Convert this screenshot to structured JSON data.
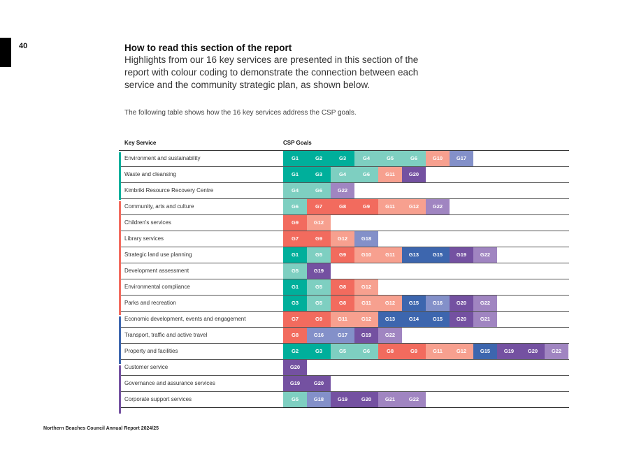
{
  "page_number": "40",
  "heading": "How to read this section of the report",
  "lead": "Highlights from our 16 key services are presented in this section of the report with colour coding to demonstrate the connection between each service and the community strategic plan, as shown below.",
  "note": "The following table shows how the 16 key services address the CSP goals.",
  "table": {
    "col_service": "Key Service",
    "col_goals": "CSP Goals",
    "rows": [
      {
        "service": "Environment and sustainability",
        "goals": [
          "G1",
          "G2",
          "G3",
          "G4",
          "G5",
          "G6",
          "G10",
          "G17"
        ]
      },
      {
        "service": "Waste and cleansing",
        "goals": [
          "G1",
          "G3",
          "G4",
          "G6",
          "G11",
          "G20"
        ]
      },
      {
        "service": "Kimbriki Resource Recovery Centre",
        "goals": [
          "G4",
          "G6",
          "G22"
        ]
      },
      {
        "service": "Community, arts and culture",
        "goals": [
          "G6",
          "G7",
          "G8",
          "G9",
          "G11",
          "G12",
          "G22"
        ]
      },
      {
        "service": "Children's services",
        "goals": [
          "G9",
          "G12"
        ]
      },
      {
        "service": "Library services",
        "goals": [
          "G7",
          "G9",
          "G12",
          "G18"
        ]
      },
      {
        "service": "Strategic land use planning",
        "goals": [
          "G1",
          "G5",
          "G9",
          "G10",
          "G11",
          "G13",
          "G15",
          "G19",
          "G22"
        ]
      },
      {
        "service": "Development assessment",
        "goals": [
          "G5",
          "G19"
        ]
      },
      {
        "service": "Environmental compliance",
        "goals": [
          "G1",
          "G5",
          "G8",
          "G12"
        ]
      },
      {
        "service": "Parks and recreation",
        "goals": [
          "G3",
          "G5",
          "G8",
          "G11",
          "G12",
          "G15",
          "G16",
          "G20",
          "G22"
        ]
      },
      {
        "service": "Economic development, events and engagement",
        "goals": [
          "G7",
          "G9",
          "G11",
          "G12",
          "G13",
          "G14",
          "G15",
          "G20",
          "G21"
        ]
      },
      {
        "service": "Transport, traffic and active travel",
        "goals": [
          "G8",
          "G16",
          "G17",
          "G19",
          "G22"
        ]
      },
      {
        "service": "Property and facilities",
        "goals": [
          "G2",
          "G3",
          "G5",
          "G6",
          "G8",
          "G9",
          "G11",
          "G12",
          "G15",
          "G19",
          "G20",
          "G22"
        ]
      },
      {
        "service": "Customer service",
        "goals": [
          "G20"
        ]
      },
      {
        "service": "Governance and assurance services",
        "goals": [
          "G19",
          "G20"
        ]
      },
      {
        "service": "Corporate support services",
        "goals": [
          "G5",
          "G18",
          "G19",
          "G20",
          "G21",
          "G22"
        ]
      }
    ],
    "groups": [
      {
        "name": "environment",
        "color": "#00AF9B",
        "rows": [
          0,
          1,
          2
        ]
      },
      {
        "name": "community",
        "color": "#F26B5E",
        "rows": [
          3,
          4,
          5,
          6,
          7,
          8,
          9
        ]
      },
      {
        "name": "economy",
        "color": "#3D66AE",
        "rows": [
          10,
          11,
          12
        ]
      },
      {
        "name": "governance",
        "color": "#7451A1",
        "rows": [
          13,
          14,
          15
        ]
      }
    ]
  },
  "goal_colors": {
    "G1": "#00AF9B",
    "G2": "#00AF9B",
    "G3": "#00AF9B",
    "G4": "#7ECFC1",
    "G5": "#7ECFC1",
    "G6": "#7ECFC1",
    "G7": "#F26B5E",
    "G8": "#F26B5E",
    "G9": "#F26B5E",
    "G10": "#F7A08F",
    "G11": "#F7A08F",
    "G12": "#F7A08F",
    "G13": "#3D66AE",
    "G14": "#3D66AE",
    "G15": "#3D66AE",
    "G16": "#8390C9",
    "G17": "#8390C9",
    "G18": "#8390C9",
    "G19": "#7451A1",
    "G20": "#7451A1",
    "G21": "#A085C1",
    "G22": "#A085C1"
  },
  "footer": "Northern Beaches Council Annual Report 2024/25"
}
